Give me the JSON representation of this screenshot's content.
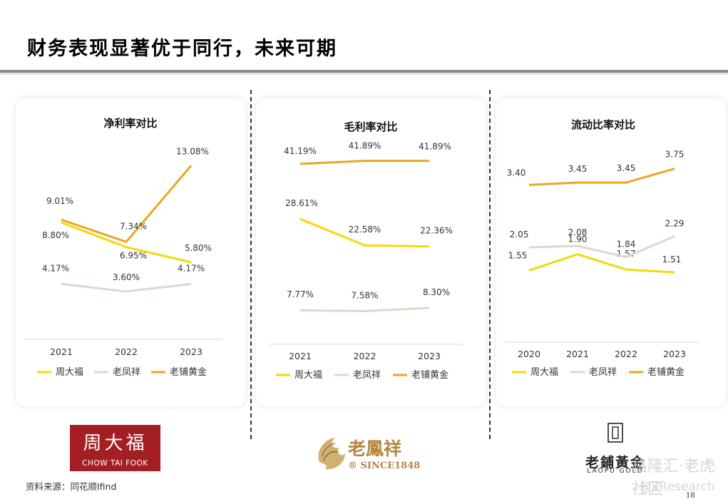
{
  "title": "财务表现显著优于同行，未来可期",
  "colors": {
    "周大福": "#f5d90a",
    "老凤祥": "#e2d6c8",
    "老铺黄金": "#eba622"
  },
  "chart_data": [
    {
      "type": "line",
      "title": "净利率对比",
      "categories": [
        "2021",
        "2022",
        "2023"
      ],
      "series": [
        {
          "name": "周大福",
          "values": [
            8.8,
            6.95,
            5.8
          ],
          "labels": [
            "8.80%",
            "6.95%",
            "5.80%"
          ]
        },
        {
          "name": "老凤祥",
          "values": [
            4.17,
            3.6,
            4.17
          ],
          "labels": [
            "4.17%",
            "3.60%",
            "4.17%"
          ]
        },
        {
          "name": "老铺黄金",
          "values": [
            9.01,
            7.34,
            13.08
          ],
          "labels": [
            "9.01%",
            "7.34%",
            "13.08%"
          ]
        }
      ],
      "ylim": [
        0,
        16
      ],
      "legend": [
        "周大福",
        "老凤祥",
        "老铺黄金"
      ]
    },
    {
      "type": "line",
      "title": "毛利率对比",
      "categories": [
        "2021",
        "2022",
        "2023"
      ],
      "series": [
        {
          "name": "周大福",
          "values": [
            28.61,
            22.58,
            22.36
          ],
          "labels": [
            "28.61%",
            "22.58%",
            "22.36%"
          ]
        },
        {
          "name": "老凤祥",
          "values": [
            7.77,
            7.58,
            8.3
          ],
          "labels": [
            "7.77%",
            "7.58%",
            "8.30%"
          ]
        },
        {
          "name": "老铺黄金",
          "values": [
            41.19,
            41.89,
            41.89
          ],
          "labels": [
            "41.19%",
            "41.89%",
            "41.89%"
          ]
        }
      ],
      "ylim": [
        0,
        48
      ],
      "legend": [
        "周大福",
        "老凤祥",
        "老铺黄金"
      ]
    },
    {
      "type": "line",
      "title": "流动比率对比",
      "categories": [
        "2020",
        "2021",
        "2022",
        "2023"
      ],
      "series": [
        {
          "name": "周大福",
          "values": [
            1.55,
            1.9,
            1.57,
            1.51
          ],
          "labels": [
            "1.55",
            "1.90",
            "1.57",
            "1.51"
          ]
        },
        {
          "name": "老凤祥",
          "values": [
            2.05,
            2.08,
            1.84,
            2.29
          ],
          "labels": [
            "2.05",
            "2.08",
            "1.84",
            "2.29"
          ]
        },
        {
          "name": "老铺黄金",
          "values": [
            3.4,
            3.45,
            3.45,
            3.75
          ],
          "labels": [
            "3.40",
            "3.45",
            "3.45",
            "3.75"
          ]
        }
      ],
      "ylim": [
        0,
        4.5
      ],
      "legend": [
        "周大福",
        "老凤祥",
        "老铺黄金"
      ]
    }
  ],
  "logos": {
    "chow_tai_fook": {
      "cn": "周大福",
      "en": "CHOW TAI FOOK"
    },
    "lao_feng_xiang": {
      "cn": "老鳳祥",
      "en": "® SINCE1848"
    },
    "laopu_gold": {
      "cn": "老鋪黃金",
      "en": "LAOPU GOLD"
    }
  },
  "source": "资料来源：同花顺Ifind",
  "page_number": "18",
  "watermark": {
    "line1": "格隆汇·老虎社区",
    "line2": "@ZResearch"
  }
}
